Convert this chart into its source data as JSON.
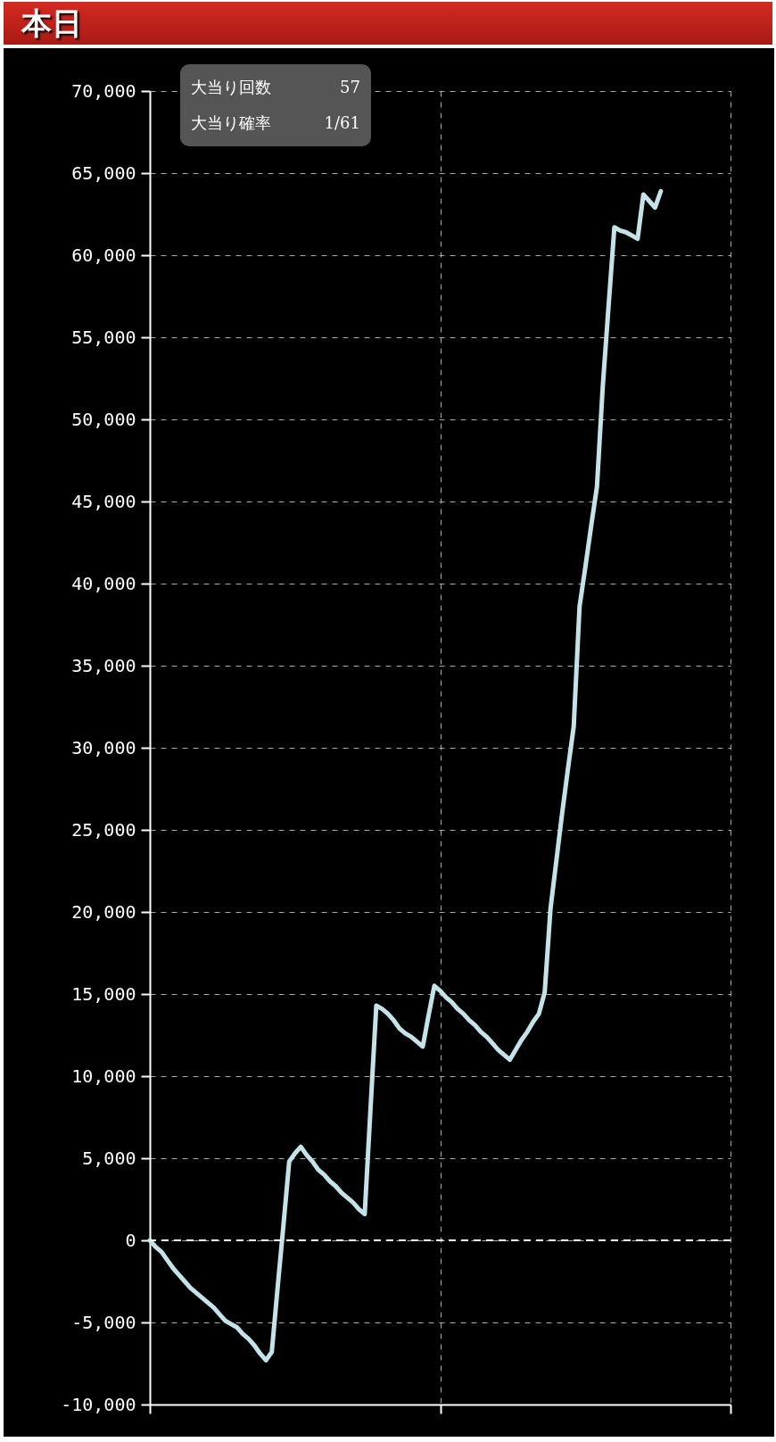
{
  "chart_data": {
    "type": "line",
    "title": "本日",
    "annotations": [
      "大当り回数 57",
      "大当り確率 1/61"
    ],
    "categories": [
      null,
      null,
      null,
      null,
      null,
      null,
      null,
      null,
      null,
      null,
      null,
      null,
      null,
      null,
      null,
      null,
      null,
      null,
      null,
      null,
      null,
      null,
      null,
      null,
      null,
      null,
      null,
      null,
      null,
      null,
      null,
      null,
      null,
      null,
      null,
      null,
      null,
      null,
      null,
      null,
      null,
      null,
      null,
      null,
      null,
      null,
      null,
      null,
      null,
      null,
      null,
      null,
      null,
      null,
      null,
      null,
      null,
      null,
      null,
      null,
      null,
      null,
      null,
      null,
      null,
      null,
      null,
      null,
      null,
      null,
      null,
      null,
      null,
      null,
      null,
      null,
      null,
      null,
      null,
      null,
      null,
      null,
      null,
      null,
      null,
      null,
      null,
      null,
      null,
      null,
      null,
      null,
      null,
      null,
      null,
      null,
      null,
      null,
      null,
      null,
      null
    ],
    "series": [
      {
        "color": "#c4e3e8",
        "values": [
          0,
          -400,
          -700,
          -1200,
          -1700,
          -2100,
          -2500,
          -2900,
          -3200,
          -3500,
          -3800,
          -4100,
          -4500,
          -4900,
          -5100,
          -5300,
          -5700,
          -6000,
          -6400,
          -6900,
          -7300,
          -6800,
          -2900,
          900,
          4800,
          5300,
          5700,
          5200,
          4800,
          4300,
          4000,
          3600,
          3300,
          2900,
          2600,
          2300,
          1900,
          1600,
          8000,
          14300,
          14100,
          13800,
          13400,
          12900,
          12600,
          12400,
          12100,
          11800,
          13700,
          15500,
          15200,
          14800,
          14500,
          14100,
          13800,
          13400,
          13100,
          12700,
          12400,
          12000,
          11600,
          11300,
          11000,
          11600,
          12200,
          12700,
          13300,
          13800,
          15100,
          20200,
          23100,
          26000,
          28700,
          31300,
          38600,
          41000,
          43500,
          45900,
          52000,
          56900,
          61700,
          61500,
          61400,
          61200,
          61000,
          63700,
          63300,
          62900,
          63900,
          null,
          null,
          null,
          null,
          null,
          null,
          null,
          null,
          null,
          null,
          null,
          null
        ]
      }
    ],
    "ylim": [
      -10000,
      70000
    ],
    "yticks": [
      {
        "value": -10000,
        "label": "-10,000"
      },
      {
        "value": -5000,
        "label": "-5,000"
      },
      0,
      {
        "value": 5000,
        "label": "5,000"
      },
      {
        "value": 10000,
        "label": "10,000"
      },
      {
        "value": 15000,
        "label": "15,000"
      },
      {
        "value": 20000,
        "label": "20,000"
      },
      {
        "value": 25000,
        "label": "25,000"
      },
      {
        "value": 30000,
        "label": "30,000"
      },
      {
        "value": 35000,
        "label": "35,000"
      },
      {
        "value": 40000,
        "label": "40,000"
      },
      {
        "value": 45000,
        "label": "45,000"
      },
      {
        "value": 50000,
        "label": "50,000"
      },
      {
        "value": 55000,
        "label": "55,000"
      },
      {
        "value": 60000,
        "label": "60,000"
      },
      {
        "value": 65000,
        "label": "65,000"
      },
      {
        "value": 70000,
        "label": "70,000"
      }
    ],
    "ref_lines": [
      {
        "axis": "y",
        "value": 0,
        "color": "#ffffff",
        "line_style": "dashed"
      }
    ],
    "grid": true,
    "marker": "none",
    "line_style": "solid",
    "tick_labels": "y"
  }
}
